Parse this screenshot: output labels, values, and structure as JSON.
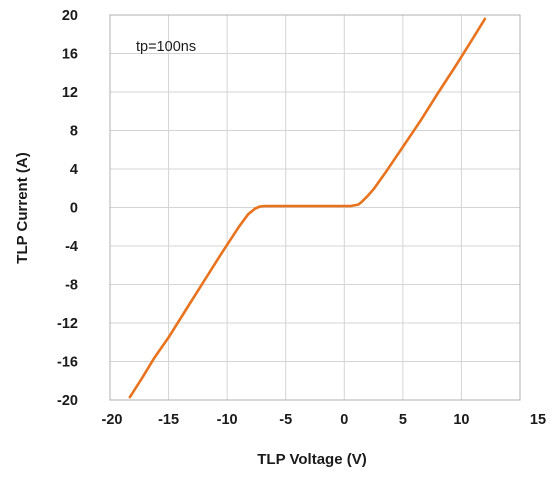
{
  "chart_data": {
    "type": "line",
    "title": "",
    "xlabel": "TLP Voltage (V)",
    "ylabel": "TLP Current (A)",
    "xlim": [
      -20,
      15
    ],
    "ylim": [
      -20,
      20
    ],
    "xticks": [
      -20,
      -15,
      -10,
      -5,
      0,
      5,
      10,
      15
    ],
    "yticks": [
      20,
      16,
      12,
      8,
      4,
      0,
      -4,
      -8,
      -12,
      -16,
      -20
    ],
    "grid": true,
    "annotation": "tp=100ns",
    "series": [
      {
        "color": "#e8731e",
        "x": [
          -18.3,
          -17.3,
          -16.2,
          -15.0,
          -13.5,
          -12.0,
          -10.5,
          -9.0,
          -8.2,
          -7.6,
          -7.2,
          -6.8,
          -6.5,
          -5.0,
          -3.0,
          -1.0,
          0.5,
          1.2,
          1.5,
          2.0,
          2.5,
          3.5,
          5.0,
          6.5,
          8.0,
          9.5,
          11.0,
          12.0
        ],
        "y": [
          -19.7,
          -17.8,
          -15.6,
          -13.5,
          -10.6,
          -7.7,
          -4.8,
          -2.0,
          -0.7,
          -0.1,
          0.1,
          0.15,
          0.15,
          0.15,
          0.15,
          0.15,
          0.15,
          0.3,
          0.6,
          1.2,
          1.9,
          3.6,
          6.3,
          9.0,
          11.9,
          14.7,
          17.6,
          19.6
        ]
      }
    ]
  }
}
